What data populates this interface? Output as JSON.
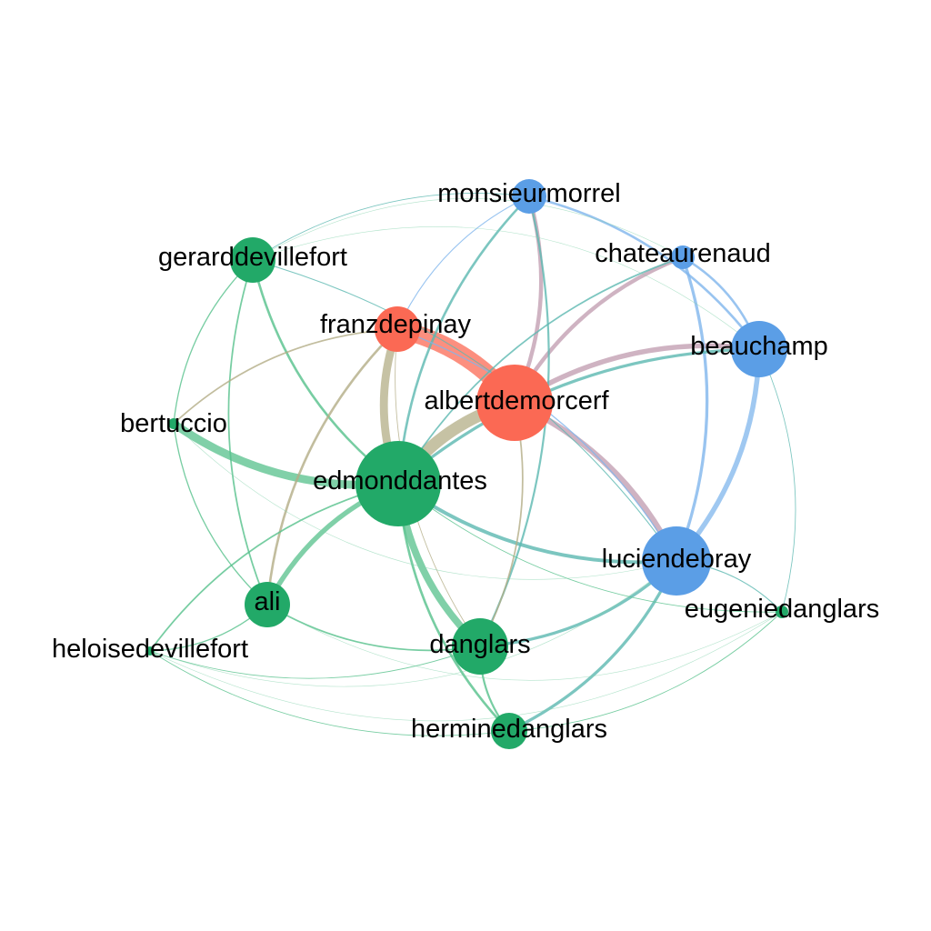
{
  "graph": {
    "colors": {
      "red": "#fb6954",
      "blue": "#5b9ee6",
      "green": "#22a968"
    },
    "nodes": [
      {
        "id": "albertdemorcerf",
        "label": "albertdemorcerf",
        "group": "red",
        "weight": 1.0
      },
      {
        "id": "franzdepinay",
        "label": "franzdepinay",
        "group": "red",
        "weight": 0.45
      },
      {
        "id": "edmonddantes",
        "label": "edmonddantes",
        "group": "green",
        "weight": 1.2
      },
      {
        "id": "gerarddevillefort",
        "label": "gerarddevillefort",
        "group": "green",
        "weight": 0.45
      },
      {
        "id": "bertuccio",
        "label": "bertuccio",
        "group": "green",
        "weight": 0.2
      },
      {
        "id": "ali",
        "label": "ali",
        "group": "green",
        "weight": 0.45
      },
      {
        "id": "heloisedevillefort",
        "label": "heloisedevillefort",
        "group": "green",
        "weight": 0.15
      },
      {
        "id": "danglars",
        "label": "danglars",
        "group": "green",
        "weight": 0.55
      },
      {
        "id": "herminedanglars",
        "label": "herminedanglars",
        "group": "green",
        "weight": 0.35
      },
      {
        "id": "monsieurmorrel",
        "label": "monsieurmorrel",
        "group": "blue",
        "weight": 0.35
      },
      {
        "id": "chateaurenaud",
        "label": "chateaurenaud",
        "group": "blue",
        "weight": 0.2
      },
      {
        "id": "beauchamp",
        "label": "beauchamp",
        "group": "blue",
        "weight": 0.6
      },
      {
        "id": "luciendebray",
        "label": "luciendebray",
        "group": "blue",
        "weight": 0.8
      },
      {
        "id": "eugeniedanglars",
        "label": "eugeniedanglars",
        "group": "green",
        "weight": 0.15
      }
    ],
    "edges": [
      {
        "source": "franzdepinay",
        "target": "albertdemorcerf",
        "weight": 9,
        "color": "#fb6954"
      },
      {
        "source": "edmonddantes",
        "target": "albertdemorcerf",
        "weight": 6,
        "color": "#b3ad86"
      },
      {
        "source": "edmonddantes",
        "target": "franzdepinay",
        "weight": 4,
        "color": "#b3ad86"
      },
      {
        "source": "bertuccio",
        "target": "edmonddantes",
        "weight": 4,
        "color": "#55c08b"
      },
      {
        "source": "edmonddantes",
        "target": "danglars",
        "weight": 3.5,
        "color": "#55c08b"
      },
      {
        "source": "edmonddantes",
        "target": "ali",
        "weight": 2.5,
        "color": "#55c08b"
      },
      {
        "source": "albertdemorcerf",
        "target": "luciendebray",
        "weight": 3,
        "color": "#bf9aae"
      },
      {
        "source": "albertdemorcerf",
        "target": "beauchamp",
        "weight": 2.5,
        "color": "#bf9aae"
      },
      {
        "source": "albertdemorcerf",
        "target": "monsieurmorrel",
        "weight": 2,
        "color": "#bf9aae"
      },
      {
        "source": "albertdemorcerf",
        "target": "chateaurenaud",
        "weight": 2,
        "color": "#bf9aae"
      },
      {
        "source": "beauchamp",
        "target": "luciendebray",
        "weight": 2.5,
        "color": "#7fb5ec"
      },
      {
        "source": "chateaurenaud",
        "target": "luciendebray",
        "weight": 1.5,
        "color": "#7fb5ec"
      },
      {
        "source": "chateaurenaud",
        "target": "beauchamp",
        "weight": 1.2,
        "color": "#7fb5ec"
      },
      {
        "source": "monsieurmorrel",
        "target": "beauchamp",
        "weight": 1.2,
        "color": "#7fb5ec"
      },
      {
        "source": "edmonddantes",
        "target": "luciendebray",
        "weight": 1.8,
        "color": "#5bb8b0"
      },
      {
        "source": "edmonddantes",
        "target": "beauchamp",
        "weight": 1.5,
        "color": "#5bb8b0"
      },
      {
        "source": "edmonddantes",
        "target": "monsieurmorrel",
        "weight": 1.2,
        "color": "#5bb8b0"
      },
      {
        "source": "danglars",
        "target": "luciendebray",
        "weight": 1.5,
        "color": "#5bb8b0"
      },
      {
        "source": "herminedanglars",
        "target": "luciendebray",
        "weight": 1.5,
        "color": "#5bb8b0"
      },
      {
        "source": "danglars",
        "target": "monsieurmorrel",
        "weight": 1.0,
        "color": "#5bb8b0"
      },
      {
        "source": "gerarddevillefort",
        "target": "edmonddantes",
        "weight": 1.2,
        "color": "#55c08b"
      },
      {
        "source": "gerarddevillefort",
        "target": "ali",
        "weight": 0.8,
        "color": "#55c08b"
      },
      {
        "source": "ali",
        "target": "franzdepinay",
        "weight": 1.2,
        "color": "#b3ad86"
      },
      {
        "source": "bertuccio",
        "target": "franzdepinay",
        "weight": 0.8,
        "color": "#b3ad86"
      },
      {
        "source": "danglars",
        "target": "albertdemorcerf",
        "weight": 0.8,
        "color": "#b3ad86"
      },
      {
        "source": "herminedanglars",
        "target": "edmonddantes",
        "weight": 1.2,
        "color": "#55c08b"
      },
      {
        "source": "herminedanglars",
        "target": "danglars",
        "weight": 1.0,
        "color": "#55c08b"
      },
      {
        "source": "ali",
        "target": "danglars",
        "weight": 0.8,
        "color": "#55c08b"
      },
      {
        "source": "heloisedevillefort",
        "target": "edmonddantes",
        "weight": 0.8,
        "color": "#55c08b"
      },
      {
        "source": "heloisedevillefort",
        "target": "ali",
        "weight": 0.6,
        "color": "#55c08b"
      },
      {
        "source": "gerarddevillefort",
        "target": "bertuccio",
        "weight": 0.6,
        "color": "#55c08b"
      },
      {
        "source": "gerarddevillefort",
        "target": "luciendebray",
        "weight": 0.5,
        "color": "#5bb8b0"
      },
      {
        "source": "gerarddevillefort",
        "target": "monsieurmorrel",
        "weight": 0.4,
        "color": "#5bb8b0"
      },
      {
        "source": "bertuccio",
        "target": "ali",
        "weight": 0.6,
        "color": "#55c08b"
      },
      {
        "source": "heloisedevillefort",
        "target": "herminedanglars",
        "weight": 0.4,
        "color": "#55c08b"
      },
      {
        "source": "heloisedevillefort",
        "target": "danglars",
        "weight": 0.4,
        "color": "#55c08b"
      },
      {
        "source": "eugeniedanglars",
        "target": "edmonddantes",
        "weight": 0.4,
        "color": "#55c08b"
      },
      {
        "source": "eugeniedanglars",
        "target": "beauchamp",
        "weight": 0.4,
        "color": "#5bb8b0"
      },
      {
        "source": "eugeniedanglars",
        "target": "herminedanglars",
        "weight": 0.4,
        "color": "#55c08b"
      },
      {
        "source": "eugeniedanglars",
        "target": "luciendebray",
        "weight": 0.5,
        "color": "#5bb8b0"
      },
      {
        "source": "franzdepinay",
        "target": "luciendebray",
        "weight": 0.6,
        "color": "#7fb5ec"
      },
      {
        "source": "franzdepinay",
        "target": "monsieurmorrel",
        "weight": 0.5,
        "color": "#7fb5ec"
      },
      {
        "source": "edmonddantes",
        "target": "chateaurenaud",
        "weight": 0.8,
        "color": "#5bb8b0"
      },
      {
        "source": "danglars",
        "target": "franzdepinay",
        "weight": 0.4,
        "color": "#b3ad86"
      }
    ]
  }
}
